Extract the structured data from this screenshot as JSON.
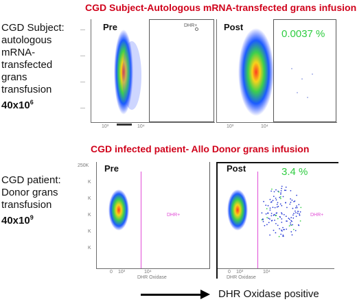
{
  "figure": {
    "title_top": "CGD Subject-Autologous mRNA-transfected grans infusion",
    "title_mid": "CGD infected patient- Allo Donor grans infusion",
    "colors": {
      "title": "#d0021b",
      "percent": "#2ecc40",
      "gate_magenta": "#e04bd6"
    }
  },
  "top_row": {
    "label_lines": [
      "CGD Subject:",
      "autologous",
      "mRNA-",
      "transfected",
      "grans",
      "transfusion"
    ],
    "dose_base": "40x10",
    "dose_exp": "6",
    "pre_label": "Pre",
    "post_label": "Post",
    "post_percent": "0.0037 %",
    "gate_name": "DHR+"
  },
  "bottom_row": {
    "label_lines": [
      "CGD patient:",
      "Donor grans",
      "transfusion"
    ],
    "dose_base": "40x10",
    "dose_exp": "9",
    "pre_label": "Pre",
    "post_label": "Post",
    "post_percent": "3.4 %",
    "gate_name": "DHR+",
    "y_axis_top": "250K",
    "y_ticks": [
      "K",
      "K",
      "K",
      "K",
      "K"
    ],
    "x_ticks": [
      "0",
      "10³",
      "10⁴"
    ],
    "x_axis_label": "DHR Oxidase"
  },
  "footer": {
    "arrow_text": "DHR Oxidase positive"
  }
}
